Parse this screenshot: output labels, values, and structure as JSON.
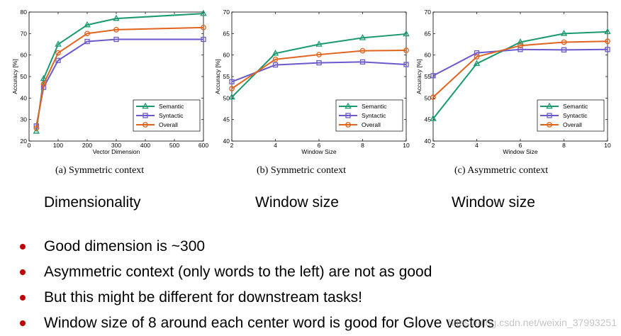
{
  "colors": {
    "semantic": "#1a9a6c",
    "syntactic": "#6a5acd",
    "overall": "#e0631e",
    "bullet": "#c00000"
  },
  "chart_data": [
    {
      "type": "line",
      "xlabel": "Vector Dimension",
      "ylabel": "Accuracy [%]",
      "xlim": [
        0,
        600
      ],
      "ylim": [
        20,
        80
      ],
      "xticks": [
        0,
        100,
        200,
        300,
        400,
        500,
        600
      ],
      "yticks": [
        20,
        30,
        40,
        50,
        60,
        70,
        80
      ],
      "legend": "bottom-right",
      "x": [
        25,
        50,
        100,
        200,
        300,
        600
      ],
      "series": [
        {
          "name": "Semantic",
          "values": [
            24.5,
            49,
            65,
            74,
            77,
            79.3
          ]
        },
        {
          "name": "Syntactic",
          "values": [
            27,
            45,
            57.5,
            66.3,
            67.3,
            67.3
          ]
        },
        {
          "name": "Overall",
          "values": [
            26,
            46.5,
            61,
            70,
            71.8,
            72.8
          ]
        }
      ],
      "caption": "(a) Symmetric context"
    },
    {
      "type": "line",
      "xlabel": "Window Size",
      "ylabel": "Accuracy [%]",
      "xlim": [
        2,
        10
      ],
      "ylim": [
        40,
        70
      ],
      "xticks": [
        2,
        4,
        6,
        8,
        10
      ],
      "yticks": [
        40,
        45,
        50,
        55,
        60,
        65,
        70
      ],
      "legend": "bottom-right",
      "x": [
        2,
        4,
        6,
        8,
        10
      ],
      "series": [
        {
          "name": "Semantic",
          "values": [
            50.2,
            60.4,
            62.5,
            64,
            64.9
          ]
        },
        {
          "name": "Syntactic",
          "values": [
            53.8,
            57.7,
            58.2,
            58.4,
            57.8
          ]
        },
        {
          "name": "Overall",
          "values": [
            52.2,
            59,
            60.1,
            61,
            61.1
          ]
        }
      ],
      "caption": "(b) Symmetric context"
    },
    {
      "type": "line",
      "xlabel": "Window Size",
      "ylabel": "Accuracy [%]",
      "xlim": [
        2,
        10
      ],
      "ylim": [
        40,
        70
      ],
      "xticks": [
        2,
        4,
        6,
        8,
        10
      ],
      "yticks": [
        40,
        45,
        50,
        55,
        60,
        65,
        70
      ],
      "legend": "bottom-right",
      "x": [
        2,
        4,
        6,
        8,
        10
      ],
      "series": [
        {
          "name": "Semantic",
          "values": [
            45.2,
            58,
            63,
            65,
            65.4
          ]
        },
        {
          "name": "Syntactic",
          "values": [
            55.2,
            60.5,
            61.3,
            61.2,
            61.3
          ]
        },
        {
          "name": "Overall",
          "values": [
            50.2,
            59.6,
            62.2,
            63,
            63.2
          ]
        }
      ],
      "caption": "(c) Asymmetric context"
    }
  ],
  "headings": [
    "Dimensionality",
    "Window size",
    "Window size"
  ],
  "bullets": [
    "Good dimension is ~300",
    "Asymmetric context (only words to the left) are not as good",
    "But this might be different for downstream tasks!",
    "Window size of 8 around each center word is good for Glove vectors"
  ],
  "watermark": "https://blog.csdn.net/weixin_37993251"
}
